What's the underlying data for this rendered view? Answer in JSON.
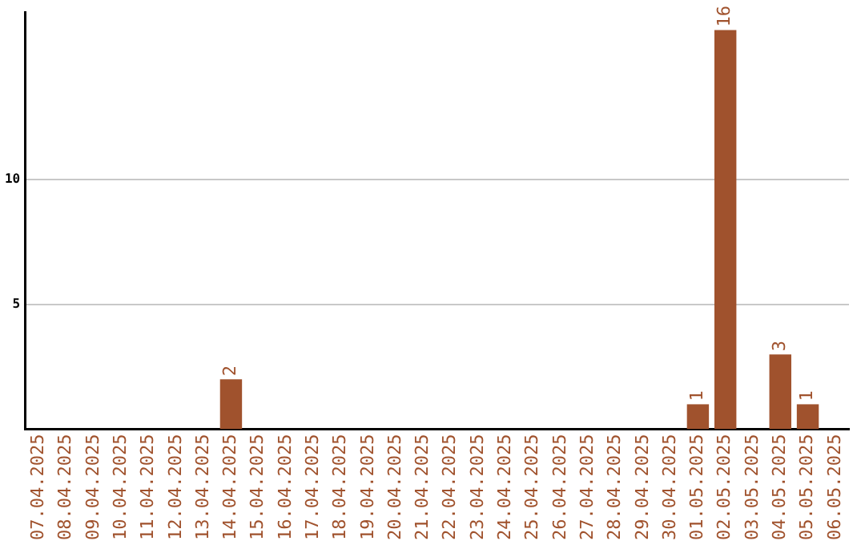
{
  "chart_data": {
    "type": "bar",
    "categories": [
      "07.04.2025",
      "08.04.2025",
      "09.04.2025",
      "10.04.2025",
      "11.04.2025",
      "12.04.2025",
      "13.04.2025",
      "14.04.2025",
      "15.04.2025",
      "16.04.2025",
      "17.04.2025",
      "18.04.2025",
      "19.04.2025",
      "20.04.2025",
      "21.04.2025",
      "22.04.2025",
      "23.04.2025",
      "24.04.2025",
      "25.04.2025",
      "26.04.2025",
      "27.04.2025",
      "28.04.2025",
      "29.04.2025",
      "30.04.2025",
      "01.05.2025",
      "02.05.2025",
      "03.05.2025",
      "04.05.2025",
      "05.05.2025",
      "06.05.2025"
    ],
    "values": [
      0,
      0,
      0,
      0,
      0,
      0,
      0,
      2,
      0,
      0,
      0,
      0,
      0,
      0,
      0,
      0,
      0,
      0,
      0,
      0,
      0,
      0,
      0,
      0,
      1,
      16,
      0,
      3,
      1,
      0
    ],
    "value_labels": [
      null,
      null,
      null,
      null,
      null,
      null,
      null,
      "2",
      null,
      null,
      null,
      null,
      null,
      null,
      null,
      null,
      null,
      null,
      null,
      null,
      null,
      null,
      null,
      null,
      "1",
      "16",
      null,
      "3",
      "1",
      null
    ],
    "color": "#a0522d",
    "ylim": [
      0,
      16.7
    ],
    "yticks": [
      5,
      10
    ],
    "grid": "y",
    "legend": false
  }
}
